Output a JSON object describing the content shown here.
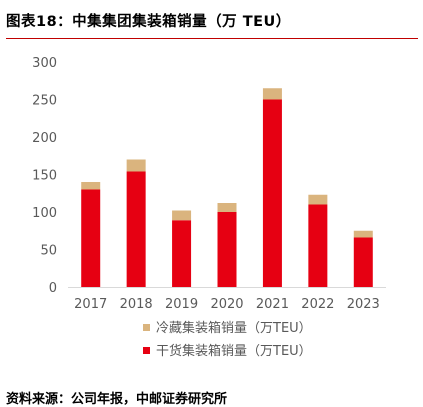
{
  "figure": {
    "title": "图表18：中集集团集装箱销量（万 TEU）",
    "source": "资料来源：公司年报，中邮证券研究所"
  },
  "colors": {
    "accent": "#c00000",
    "dry": "#e60012",
    "reefer": "#dab47e",
    "axis_text": "#595959"
  },
  "chart_data": {
    "type": "bar",
    "stacked": true,
    "categories": [
      "2017",
      "2018",
      "2019",
      "2020",
      "2021",
      "2022",
      "2023"
    ],
    "series": [
      {
        "name": "干货集装箱销量（万TEU）",
        "values": [
          130,
          154,
          89,
          100,
          250,
          110,
          66
        ],
        "color": "#e60012"
      },
      {
        "name": "冷藏集装箱销量（万TEU）",
        "values": [
          10,
          16,
          13,
          12,
          15,
          13,
          9
        ],
        "color": "#dab47e"
      }
    ],
    "ylim": [
      0,
      300
    ],
    "yticks": [
      0,
      50,
      100,
      150,
      200,
      250,
      300
    ],
    "grid": false,
    "legend_position": "bottom"
  }
}
